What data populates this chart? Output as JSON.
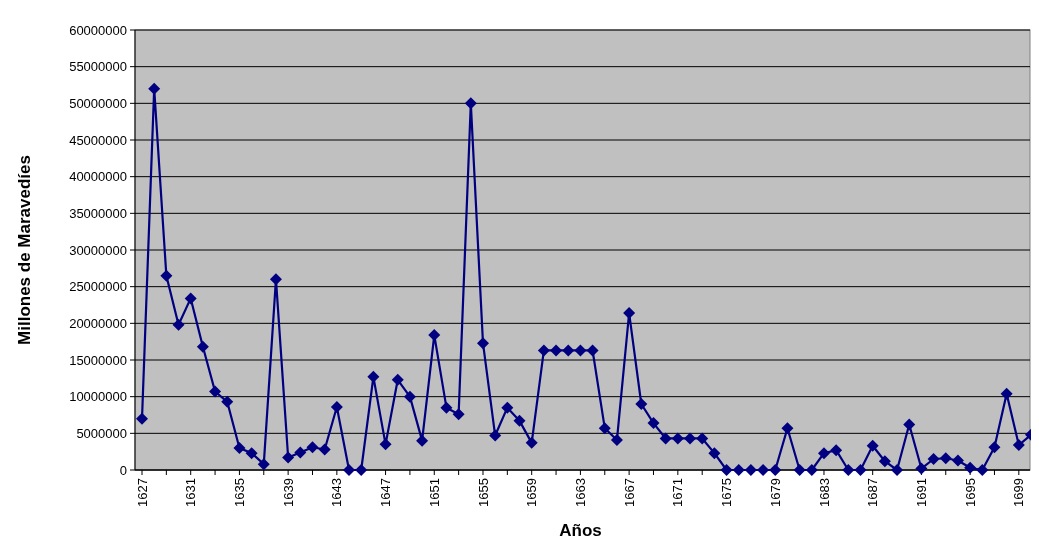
{
  "chart_data": {
    "type": "line",
    "xlabel": "Años",
    "ylabel": "Millones de Maravedíes",
    "categories": [
      "1627",
      null,
      null,
      null,
      "1631",
      null,
      null,
      null,
      "1635",
      null,
      null,
      null,
      "1639",
      null,
      null,
      null,
      "1643",
      null,
      null,
      null,
      "1647",
      null,
      null,
      null,
      "1651",
      null,
      null,
      null,
      "1655",
      null,
      null,
      null,
      "1659",
      null,
      null,
      null,
      "1663",
      null,
      null,
      null,
      "1667",
      null,
      null,
      null,
      "1671",
      null,
      null,
      null,
      "1675",
      null,
      null,
      null,
      "1679",
      null,
      null,
      null,
      "1683",
      null,
      null,
      null,
      "1687",
      null,
      null,
      null,
      "1691",
      null,
      null,
      null,
      "1695",
      null,
      null,
      null,
      "1699",
      null
    ],
    "series": [
      {
        "color": "#000080",
        "values": [
          7000000,
          52000000,
          26500000,
          19800000,
          23400000,
          16800000,
          10700000,
          9300000,
          3000000,
          2300000,
          800000,
          26000000,
          1700000,
          2400000,
          3100000,
          2800000,
          8600000,
          0,
          0,
          12700000,
          3500000,
          12300000,
          10000000,
          4000000,
          18400000,
          8500000,
          7600000,
          50000000,
          17300000,
          4700000,
          8500000,
          6700000,
          3700000,
          16300000,
          16300000,
          16300000,
          16300000,
          16300000,
          5700000,
          4100000,
          21400000,
          9000000,
          6400000,
          4300000,
          4300000,
          4300000,
          4300000,
          2300000,
          0,
          0,
          0,
          0,
          0,
          5700000,
          0,
          0,
          2300000,
          2700000,
          0,
          0,
          3300000,
          1200000,
          0,
          6200000,
          200000,
          1500000,
          1600000,
          1300000,
          300000,
          0,
          3100000,
          10400000,
          3400000,
          4800000
        ]
      }
    ],
    "ylim": [
      0,
      60000000
    ],
    "yticks": [
      0,
      5000000,
      10000000,
      15000000,
      20000000,
      25000000,
      30000000,
      35000000,
      40000000,
      45000000,
      50000000,
      55000000,
      60000000
    ],
    "grid": "y",
    "marker": "diamond",
    "line_style": "solid"
  }
}
